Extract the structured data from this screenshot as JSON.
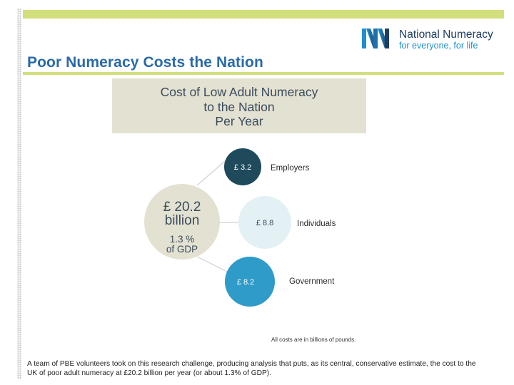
{
  "slide": {
    "title": "Poor Numeracy Costs the Nation",
    "body_text": "A team of PBE volunteers took on this research challenge, producing analysis that puts, as its central, conservative estimate, the cost to the UK of poor adult numeracy at £20.2 billion per year (or about 1.3% of GDP)."
  },
  "logo": {
    "name": "National Numeracy",
    "tagline": "for everyone, for life"
  },
  "diagram": {
    "header_lines": [
      "Cost of Low Adult Numeracy",
      "to the Nation",
      "Per Year"
    ],
    "total": {
      "line1": "£ 20.2",
      "line2": "billion",
      "line3": "1.3 %",
      "line4": "of GDP"
    },
    "nodes": [
      {
        "value_label": "£ 3.2",
        "value": 3.2,
        "label": "Employers",
        "color": "#1e4a5c",
        "text_color": "#ffffff"
      },
      {
        "value_label": "£ 8.8",
        "value": 8.8,
        "label": "Individuals",
        "color": "#e3f1f4",
        "text_color": "#3a4b5c"
      },
      {
        "value_label": "£ 8.2",
        "value": 8.2,
        "label": "Government",
        "color": "#2e9bc9",
        "text_color": "#ffffff"
      }
    ],
    "footnote": "All costs are in billions of pounds."
  },
  "colors": {
    "accent_green": "#d3de7c",
    "title_blue": "#2a6aa8",
    "center_circle": "#e3e1d1",
    "connector": "#d9d9d9"
  }
}
